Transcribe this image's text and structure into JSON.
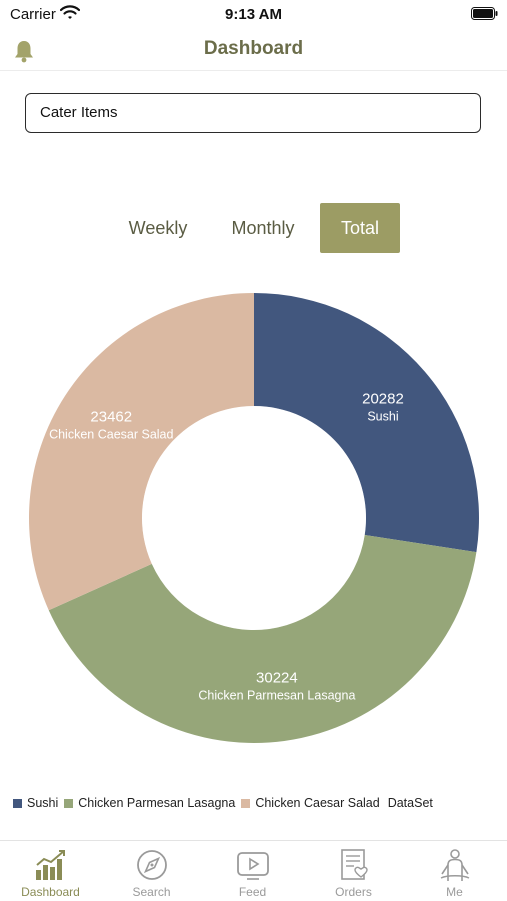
{
  "status_bar": {
    "carrier": "Carrier",
    "time": "9:13 AM"
  },
  "nav": {
    "title": "Dashboard",
    "notification_icon": "bell-icon"
  },
  "picker": {
    "value": "Cater Items"
  },
  "segments": {
    "weekly": "Weekly",
    "monthly": "Monthly",
    "total": "Total",
    "selected": "Total"
  },
  "chart_data": {
    "type": "pie",
    "variant": "donut",
    "categories": [
      "Sushi",
      "Chicken Parmesan Lasagna",
      "Chicken Caesar Salad"
    ],
    "values": [
      20282,
      30224,
      23462
    ],
    "colors": [
      "#42577e",
      "#96a679",
      "#dab9a2"
    ],
    "legend_position": "bottom-left",
    "dataset_label": "DataSet"
  },
  "tabbar": {
    "items": [
      {
        "label": "Dashboard",
        "icon": "bar-chart-icon",
        "active": true
      },
      {
        "label": "Search",
        "icon": "compass-icon",
        "active": false
      },
      {
        "label": "Feed",
        "icon": "play-icon",
        "active": false
      },
      {
        "label": "Orders",
        "icon": "orders-icon",
        "active": false
      },
      {
        "label": "Me",
        "icon": "person-icon",
        "active": false
      }
    ]
  }
}
